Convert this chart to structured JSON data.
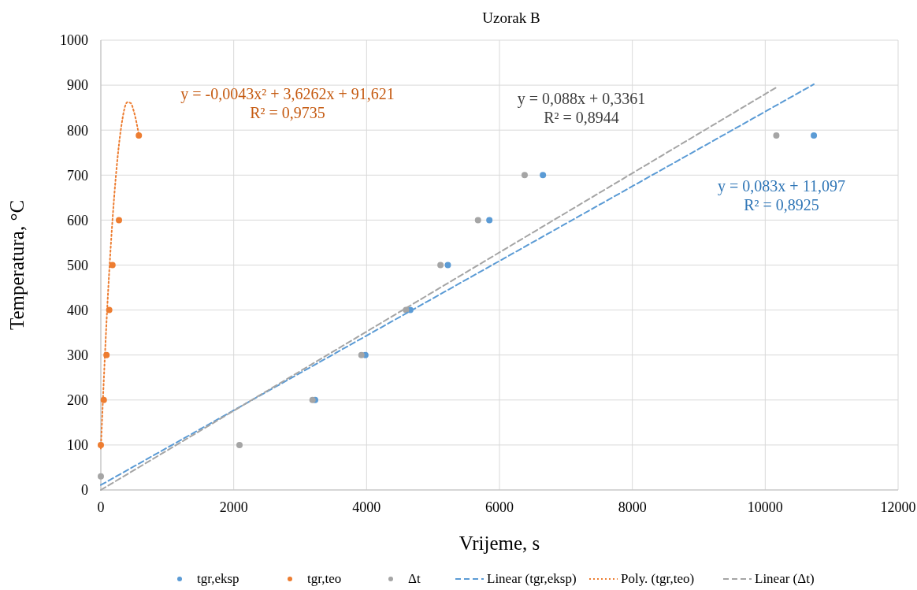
{
  "chart_data": {
    "type": "scatter",
    "title": "Uzorak B",
    "xlabel": "Vrijeme, s",
    "ylabel": "Temperatura, °C",
    "xlim": [
      0,
      12000
    ],
    "xticks": [
      0,
      2000,
      4000,
      6000,
      8000,
      10000,
      12000
    ],
    "ylim": [
      0,
      1000
    ],
    "yticks": [
      0,
      100,
      200,
      300,
      400,
      500,
      600,
      700,
      800,
      900,
      1000
    ],
    "grid": true,
    "legend": "bottom",
    "marker": "circle",
    "annotations": [
      "y = -0,0043x² + 3,6262x + 91,621",
      "R² = 0,9735",
      "y = 0,088x + 0,3361",
      "R² = 0,8944",
      "y = 0,083x + 11,097",
      "R² = 0,8925"
    ],
    "series": [
      {
        "name": "tgr,eksp",
        "color": "#5b9bd5",
        "x": [
          3225,
          3982,
          4658,
          5223,
          5848,
          6654,
          10732
        ],
        "values": [
          200,
          300,
          400,
          500,
          600,
          700,
          788
        ]
      },
      {
        "name": "tgr,teo",
        "color": "#ed7d31",
        "x": [
          0,
          44,
          85,
          126,
          175,
          273,
          572
        ],
        "values": [
          100,
          200,
          300,
          400,
          500,
          600,
          788
        ]
      },
      {
        "name": "Δt",
        "color": "#a5a5a5",
        "x": [
          0,
          2087,
          3186,
          3922,
          4593,
          5112,
          5677,
          6379,
          10167
        ],
        "values": [
          30,
          100,
          200,
          300,
          400,
          500,
          600,
          700,
          788
        ]
      },
      {
        "name": "Linear (tgr,eksp)",
        "type": "line",
        "line_style": "dashed",
        "marker": "none",
        "color": "#5b9bd5",
        "x": [
          0,
          10732
        ],
        "values": [
          11,
          902
        ]
      },
      {
        "name": "Poly. (tgr,teo)",
        "type": "line",
        "line_style": "dotted",
        "marker": "none",
        "color": "#ed7d31",
        "x": [
          0,
          100,
          200,
          300,
          400,
          450,
          500,
          572
        ],
        "values": [
          92,
          415,
          650,
          800,
          862,
          860,
          840,
          790
        ]
      },
      {
        "name": "Linear (Δt)",
        "type": "line",
        "line_style": "dashed",
        "marker": "none",
        "color": "#a5a5a5",
        "x": [
          0,
          10167
        ],
        "values": [
          0,
          895
        ]
      }
    ]
  }
}
